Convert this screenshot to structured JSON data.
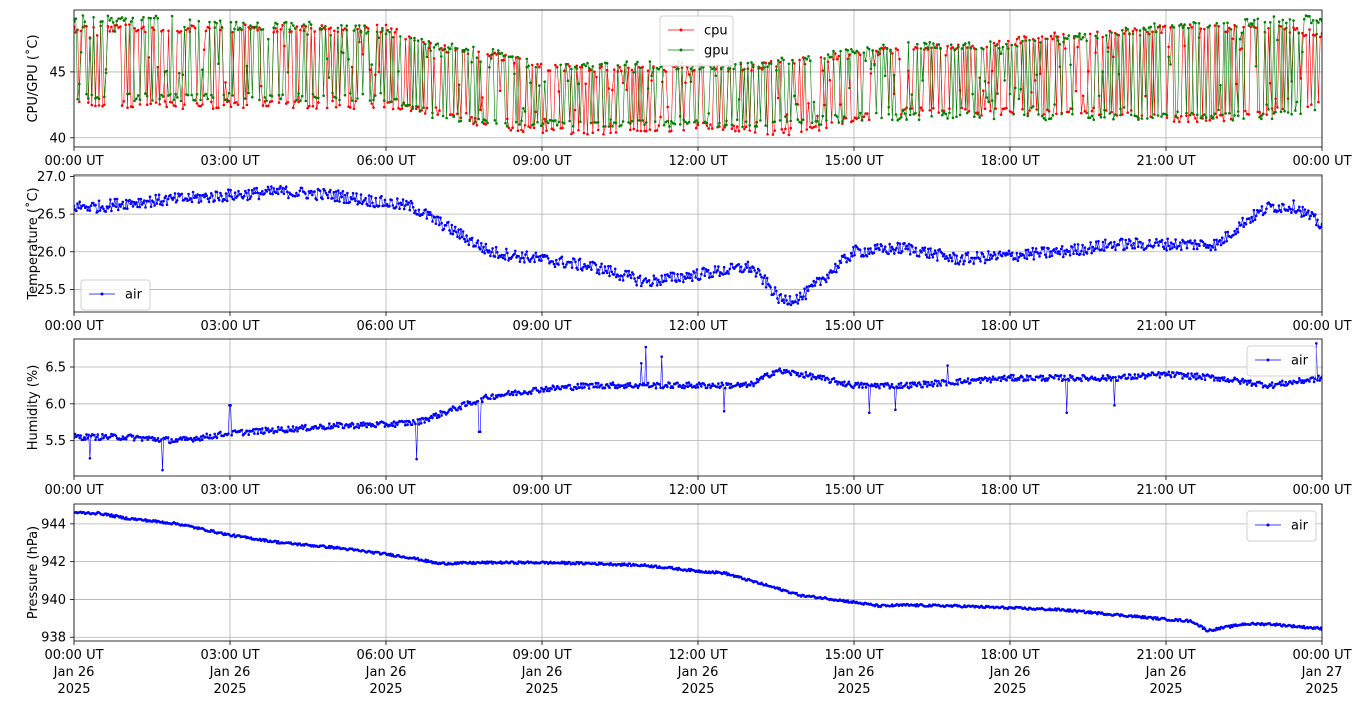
{
  "chart_data": [
    {
      "type": "line",
      "ylabel": "CPU/GPU (˚C)",
      "ylim": [
        39.3,
        49.7
      ],
      "yticks": [
        40,
        45
      ],
      "x_range": [
        "2025-01-26 00:00",
        "2025-01-27 00:00"
      ],
      "x_tick_labels": [
        "00:00 UT",
        "03:00 UT",
        "06:00 UT",
        "09:00 UT",
        "12:00 UT",
        "15:00 UT",
        "18:00 UT",
        "21:00 UT",
        "00:00 UT"
      ],
      "grid": true,
      "legend": "top-center",
      "series": [
        {
          "name": "cpu",
          "color": "#ff0000",
          "marker": "dot",
          "x_hours": [
            0,
            1,
            2,
            3,
            4,
            5,
            6,
            7,
            8,
            9,
            10,
            11,
            12,
            13,
            14,
            15,
            16,
            17,
            18,
            19,
            20,
            21,
            22,
            23,
            24
          ],
          "low": [
            42.2,
            42.2,
            42.2,
            42.2,
            42.2,
            42.2,
            42.2,
            41.7,
            40.7,
            40.2,
            40.2,
            40.2,
            40.7,
            40.2,
            40.2,
            41.2,
            41.7,
            41.7,
            41.7,
            41.7,
            41.7,
            41.2,
            41.2,
            41.7,
            42.2
          ],
          "high": [
            48.6,
            48.6,
            48.6,
            48.6,
            48.6,
            48.6,
            48.6,
            47.1,
            46.6,
            45.6,
            45.6,
            45.6,
            45.6,
            45.6,
            46.1,
            46.6,
            47.1,
            47.1,
            47.6,
            48.1,
            48.1,
            48.6,
            48.6,
            48.6,
            48.1
          ]
        },
        {
          "name": "gpu",
          "color": "#008000",
          "marker": "dot",
          "x_hours": [
            0,
            1,
            2,
            3,
            4,
            5,
            6,
            7,
            8,
            9,
            10,
            11,
            12,
            13,
            14,
            15,
            16,
            17,
            18,
            19,
            20,
            21,
            22,
            23,
            24
          ],
          "low": [
            42.8,
            42.8,
            42.8,
            42.8,
            42.8,
            42.8,
            42.8,
            41.3,
            40.8,
            40.8,
            40.8,
            40.8,
            40.8,
            40.8,
            40.8,
            41.3,
            41.3,
            41.3,
            41.3,
            41.3,
            41.3,
            41.3,
            41.3,
            41.3,
            41.8
          ],
          "high": [
            49.3,
            49.3,
            49.3,
            48.8,
            48.8,
            48.8,
            48.3,
            47.3,
            46.8,
            45.8,
            45.8,
            45.8,
            45.8,
            45.8,
            46.3,
            46.8,
            47.3,
            47.3,
            47.3,
            47.8,
            48.3,
            48.8,
            48.8,
            49.3,
            49.3
          ]
        }
      ]
    },
    {
      "type": "line",
      "ylabel": "Temperature (˚C)",
      "ylim": [
        25.2,
        27.02
      ],
      "yticks": [
        25.5,
        26.0,
        26.5,
        27.0
      ],
      "ytick_labels": [
        "25.5",
        "26.0",
        "26.5",
        "27.0"
      ],
      "x_range": [
        "2025-01-26 00:00",
        "2025-01-27 00:00"
      ],
      "x_tick_labels": [
        "00:00 UT",
        "03:00 UT",
        "06:00 UT",
        "09:00 UT",
        "12:00 UT",
        "15:00 UT",
        "18:00 UT",
        "21:00 UT",
        "00:00 UT"
      ],
      "grid": true,
      "legend": "bottom-left",
      "series": [
        {
          "name": "air",
          "color": "#0000ff",
          "marker": "dot",
          "x_hours": [
            0,
            0.5,
            1,
            2,
            3,
            4,
            5,
            6,
            6.5,
            7,
            7.5,
            8,
            9,
            10,
            11,
            12,
            12.5,
            13,
            13.3,
            13.6,
            14,
            14.5,
            15,
            16,
            17,
            18,
            19,
            20,
            21,
            22,
            22.5,
            23,
            23.5,
            24
          ],
          "y": [
            26.6,
            26.6,
            26.65,
            26.7,
            26.75,
            26.8,
            26.75,
            26.65,
            26.6,
            26.4,
            26.2,
            26.0,
            25.9,
            25.8,
            25.6,
            25.7,
            25.75,
            25.8,
            25.6,
            25.35,
            25.4,
            25.7,
            26.0,
            26.05,
            25.9,
            25.95,
            26.0,
            26.1,
            26.1,
            26.1,
            26.4,
            26.6,
            26.6,
            26.35
          ],
          "jitter": 0.08
        }
      ]
    },
    {
      "type": "line",
      "ylabel": "Humidity (%)",
      "ylim": [
        5.02,
        6.88
      ],
      "yticks": [
        5.5,
        6.0,
        6.5
      ],
      "ytick_labels": [
        "5.5",
        "6.0",
        "6.5"
      ],
      "x_range": [
        "2025-01-26 00:00",
        "2025-01-27 00:00"
      ],
      "x_tick_labels": [
        "00:00 UT",
        "03:00 UT",
        "06:00 UT",
        "09:00 UT",
        "12:00 UT",
        "15:00 UT",
        "18:00 UT",
        "21:00 UT",
        "00:00 UT"
      ],
      "grid": true,
      "legend": "top-right",
      "series": [
        {
          "name": "air",
          "color": "#0000ff",
          "marker": "dot",
          "x_hours": [
            0,
            1,
            2,
            3,
            4,
            5,
            6,
            6.6,
            7,
            7.5,
            8,
            9,
            10,
            11,
            12,
            13,
            13.5,
            14,
            15,
            16,
            17,
            18,
            19,
            20,
            21,
            22,
            23,
            24
          ],
          "y": [
            5.55,
            5.55,
            5.5,
            5.6,
            5.65,
            5.7,
            5.72,
            5.75,
            5.85,
            5.98,
            6.1,
            6.2,
            6.25,
            6.25,
            6.25,
            6.25,
            6.45,
            6.4,
            6.25,
            6.25,
            6.3,
            6.35,
            6.35,
            6.35,
            6.4,
            6.35,
            6.25,
            6.35
          ],
          "jitter": 0.04,
          "spikes": [
            {
              "x_hours": 0.3,
              "y": 5.26
            },
            {
              "x_hours": 1.7,
              "y": 5.1
            },
            {
              "x_hours": 3.0,
              "y": 5.98
            },
            {
              "x_hours": 6.6,
              "y": 5.25
            },
            {
              "x_hours": 7.8,
              "y": 5.62
            },
            {
              "x_hours": 10.9,
              "y": 6.55
            },
            {
              "x_hours": 11.0,
              "y": 6.77
            },
            {
              "x_hours": 11.3,
              "y": 6.64
            },
            {
              "x_hours": 12.5,
              "y": 5.9
            },
            {
              "x_hours": 15.3,
              "y": 5.88
            },
            {
              "x_hours": 15.8,
              "y": 5.92
            },
            {
              "x_hours": 16.8,
              "y": 6.52
            },
            {
              "x_hours": 19.1,
              "y": 5.88
            },
            {
              "x_hours": 20.0,
              "y": 5.98
            },
            {
              "x_hours": 21.0,
              "y": 6.58
            },
            {
              "x_hours": 23.9,
              "y": 6.82
            }
          ]
        }
      ]
    },
    {
      "type": "line",
      "ylabel": "Pressure (hPa)",
      "ylim": [
        937.8,
        945.05
      ],
      "yticks": [
        938,
        940,
        942,
        944
      ],
      "ytick_labels": [
        "938",
        "940",
        "942",
        "944"
      ],
      "x_range": [
        "2025-01-26 00:00",
        "2025-01-27 00:00"
      ],
      "x_tick_labels": [
        "00:00 UT",
        "03:00 UT",
        "06:00 UT",
        "09:00 UT",
        "12:00 UT",
        "15:00 UT",
        "18:00 UT",
        "21:00 UT",
        "00:00 UT"
      ],
      "x_tick_dates": [
        "Jan 26",
        "Jan 26",
        "Jan 26",
        "Jan 26",
        "Jan 26",
        "Jan 26",
        "Jan 26",
        "Jan 26",
        "Jan 27"
      ],
      "x_tick_years": [
        "2025",
        "2025",
        "2025",
        "2025",
        "2025",
        "2025",
        "2025",
        "2025",
        "2025"
      ],
      "grid": true,
      "legend": "top-right",
      "series": [
        {
          "name": "air",
          "color": "#0000ff",
          "marker": "dot",
          "x_hours": [
            0,
            0.5,
            1,
            2,
            3,
            4,
            5,
            6,
            6.5,
            7,
            8,
            9,
            10,
            11,
            11.5,
            12,
            12.5,
            13,
            14,
            14.5,
            15,
            15.5,
            16,
            17,
            18,
            19,
            20,
            21,
            21.5,
            21.8,
            22,
            22.5,
            23,
            24
          ],
          "y": [
            944.6,
            944.55,
            944.3,
            944.0,
            943.4,
            943.0,
            942.75,
            942.4,
            942.2,
            941.9,
            941.95,
            941.95,
            941.9,
            941.8,
            941.65,
            941.5,
            941.4,
            941.0,
            940.2,
            940.05,
            939.85,
            939.65,
            939.7,
            939.65,
            939.55,
            939.45,
            939.2,
            938.95,
            938.85,
            938.35,
            938.45,
            938.7,
            938.7,
            938.45
          ],
          "jitter": 0.06
        }
      ]
    }
  ]
}
